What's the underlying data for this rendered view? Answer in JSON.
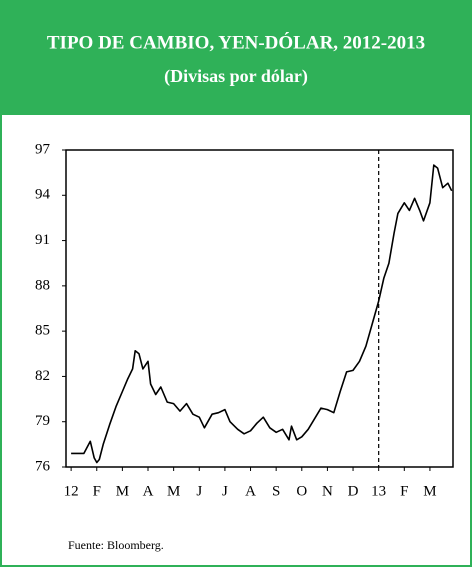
{
  "chart_data": {
    "type": "line",
    "title": "TIPO DE CAMBIO, YEN-DÓLAR, 2012-2013",
    "subtitle": "(Divisas por dólar)",
    "source": "Fuente: Bloomberg.",
    "color": "#000000",
    "x": [
      0,
      0.25,
      0.5,
      0.75,
      0.9,
      1.0,
      1.1,
      1.25,
      1.5,
      1.75,
      2.0,
      2.2,
      2.4,
      2.5,
      2.65,
      2.8,
      3.0,
      3.1,
      3.3,
      3.5,
      3.75,
      4.0,
      4.25,
      4.5,
      4.75,
      5.0,
      5.2,
      5.5,
      5.75,
      6.0,
      6.2,
      6.5,
      6.75,
      7.0,
      7.25,
      7.5,
      7.75,
      8.0,
      8.25,
      8.5,
      8.6,
      8.8,
      9.0,
      9.25,
      9.5,
      9.75,
      10.0,
      10.25,
      10.5,
      10.75,
      11.0,
      11.25,
      11.5,
      11.75,
      12.0,
      12.2,
      12.4,
      12.6,
      12.75,
      13.0,
      13.2,
      13.4,
      13.6,
      13.75,
      14.0,
      14.15,
      14.3,
      14.5,
      14.7,
      14.85
    ],
    "values": [
      76.9,
      76.9,
      76.9,
      77.7,
      76.6,
      76.3,
      76.5,
      77.5,
      78.8,
      80.0,
      81.0,
      81.8,
      82.5,
      83.7,
      83.5,
      82.5,
      83.0,
      81.5,
      80.8,
      81.3,
      80.3,
      80.2,
      79.7,
      80.2,
      79.5,
      79.3,
      78.6,
      79.5,
      79.6,
      79.8,
      79.0,
      78.5,
      78.2,
      78.4,
      78.9,
      79.3,
      78.6,
      78.3,
      78.5,
      77.8,
      78.7,
      77.8,
      78.0,
      78.5,
      79.2,
      79.9,
      79.8,
      79.6,
      81.0,
      82.3,
      82.4,
      83.0,
      84.0,
      85.5,
      87.0,
      88.5,
      89.5,
      91.5,
      92.8,
      93.5,
      93.0,
      93.8,
      93.0,
      92.3,
      93.5,
      96.0,
      95.8,
      94.5,
      94.8,
      94.3
    ],
    "xlim": [
      -0.2,
      14.9
    ],
    "xticks": [
      {
        "value": 0,
        "label": "12"
      },
      {
        "value": 1,
        "label": "F"
      },
      {
        "value": 2,
        "label": "M"
      },
      {
        "value": 3,
        "label": "A"
      },
      {
        "value": 4,
        "label": "M"
      },
      {
        "value": 5,
        "label": "J"
      },
      {
        "value": 6,
        "label": "J"
      },
      {
        "value": 7,
        "label": "A"
      },
      {
        "value": 8,
        "label": "S"
      },
      {
        "value": 9,
        "label": "O"
      },
      {
        "value": 10,
        "label": "N"
      },
      {
        "value": 11,
        "label": "D"
      },
      {
        "value": 12,
        "label": "13"
      },
      {
        "value": 13,
        "label": "F"
      },
      {
        "value": 14,
        "label": "M"
      }
    ],
    "ylim": [
      76,
      97
    ],
    "yticks": [
      76,
      79,
      82,
      85,
      88,
      91,
      94,
      97
    ],
    "vlines": [
      12
    ]
  }
}
